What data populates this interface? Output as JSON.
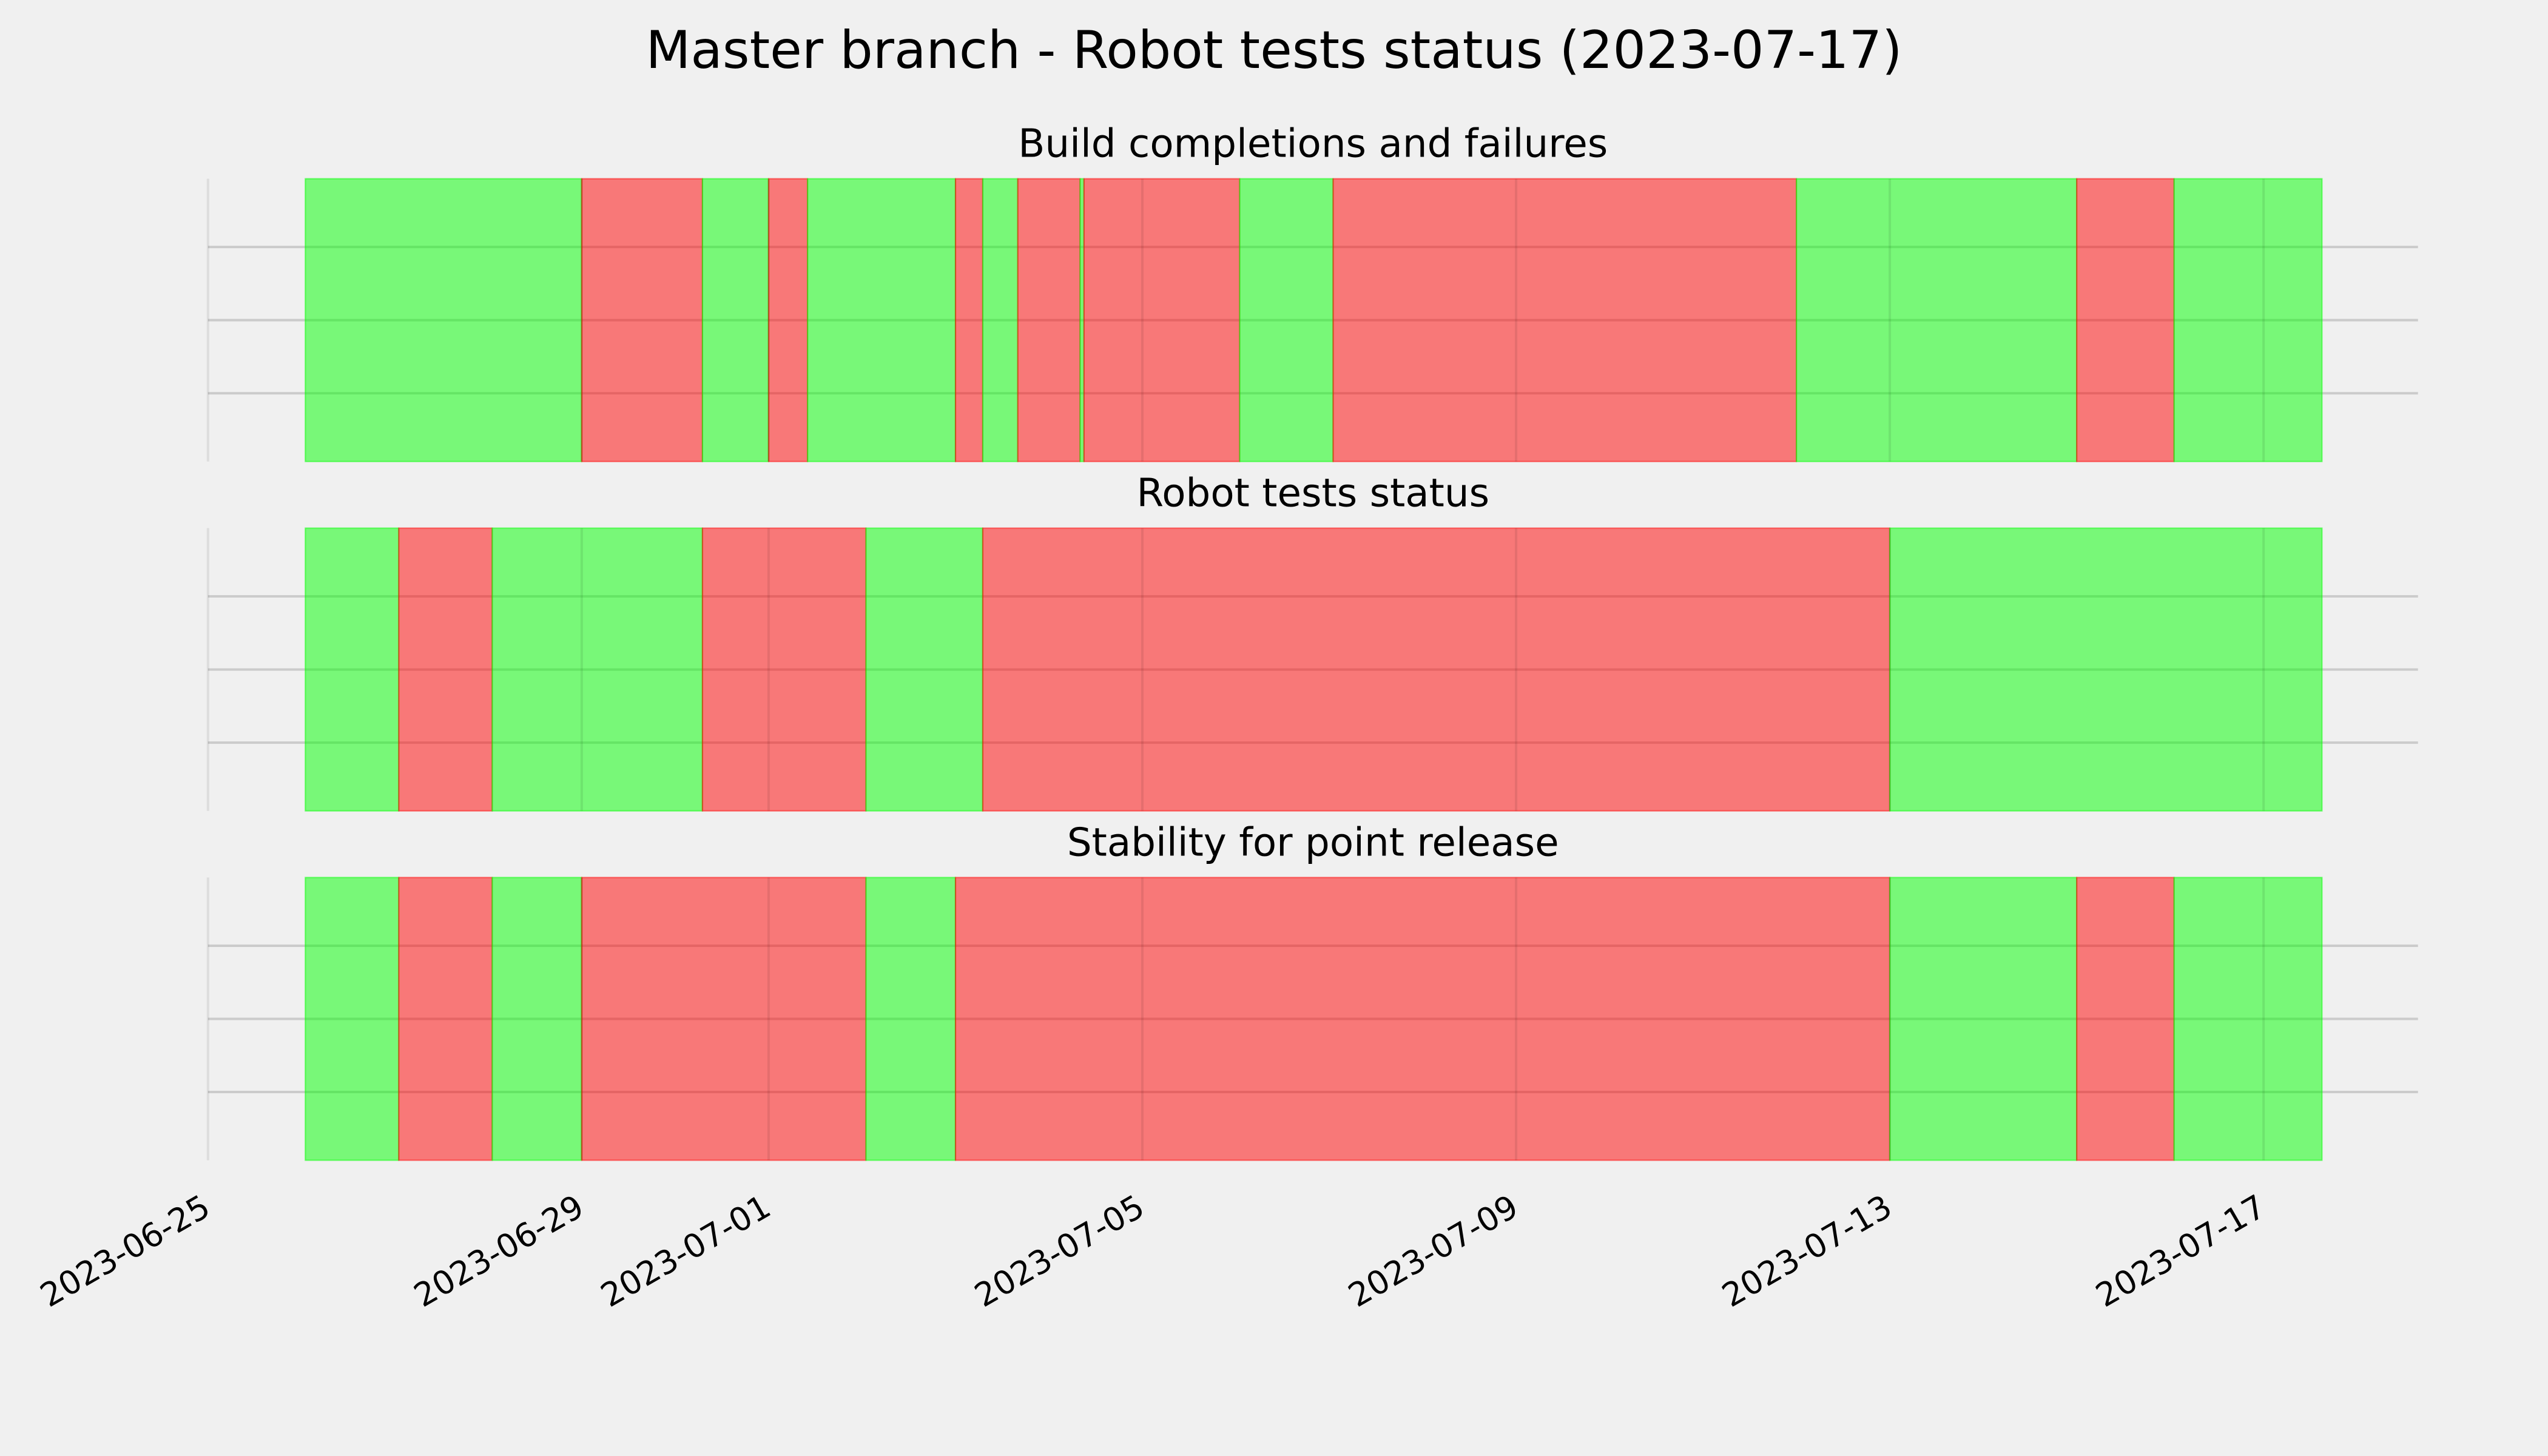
{
  "title": "Master branch - Robot tests status (2023-07-17)",
  "chart_data": [
    {
      "type": "timeline",
      "title": "Build completions and failures",
      "x": [
        "2023-06-26T01:00",
        "2023-06-29T00:00",
        "2023-06-30T07:00",
        "2023-07-01T00:00",
        "2023-07-01T10:00",
        "2023-07-03T00:00",
        "2023-07-03T07:00",
        "2023-07-03T16:00",
        "2023-07-04T08:00",
        "2023-07-04T09:00",
        "2023-07-06T01:00",
        "2023-07-07T01:00",
        "2023-07-12T00:00",
        "2023-07-15T00:00",
        "2023-07-16T01:00",
        "2023-07-17T15:00"
      ],
      "colors": [
        "#00ff00",
        "#ff0000",
        "#00ff00",
        "#ff0000",
        "#00ff00",
        "#ff0000",
        "#00ff00",
        "#ff0000",
        "#00ff00",
        "#ff0000",
        "#00ff00",
        "#ff0000",
        "#00ff00",
        "#ff0000",
        "#00ff00"
      ],
      "alpha": 0.5,
      "grid": true,
      "xlim": [
        "2023-06-25",
        "2023-07-18T15:40"
      ],
      "xticks": [
        "2023-06-25",
        "2023-06-29",
        "2023-07-01",
        "2023-07-05",
        "2023-07-09",
        "2023-07-13",
        "2023-07-17"
      ]
    },
    {
      "type": "timeline",
      "title": "Robot tests status",
      "x": [
        "2023-06-26T01:00",
        "2023-06-27T01:00",
        "2023-06-28T01:00",
        "2023-06-30T07:00",
        "2023-07-02T01:00",
        "2023-07-03T07:00",
        "2023-07-13T00:00",
        "2023-07-17T15:00"
      ],
      "colors": [
        "#00ff00",
        "#ff0000",
        "#00ff00",
        "#ff0000",
        "#00ff00",
        "#ff0000",
        "#00ff00"
      ],
      "alpha": 0.5,
      "grid": true,
      "xlim": [
        "2023-06-25",
        "2023-07-18T15:40"
      ],
      "xticks": [
        "2023-06-25",
        "2023-06-29",
        "2023-07-01",
        "2023-07-05",
        "2023-07-09",
        "2023-07-13",
        "2023-07-17"
      ]
    },
    {
      "type": "timeline",
      "title": "Stability for point release",
      "x": [
        "2023-06-26T01:00",
        "2023-06-27T01:00",
        "2023-06-28T01:00",
        "2023-06-29T00:00",
        "2023-07-02T01:00",
        "2023-07-03T00:00",
        "2023-07-13T00:00",
        "2023-07-15T00:00",
        "2023-07-16T01:00",
        "2023-07-17T15:00"
      ],
      "colors": [
        "#00ff00",
        "#ff0000",
        "#00ff00",
        "#ff0000",
        "#00ff00",
        "#ff0000",
        "#00ff00",
        "#ff0000",
        "#00ff00"
      ],
      "alpha": 0.5,
      "grid": true,
      "show_tick_labels": true,
      "xlim": [
        "2023-06-25",
        "2023-07-18T15:40"
      ],
      "xticks": [
        "2023-06-25",
        "2023-06-29",
        "2023-07-01",
        "2023-07-05",
        "2023-07-09",
        "2023-07-13",
        "2023-07-17"
      ]
    }
  ]
}
